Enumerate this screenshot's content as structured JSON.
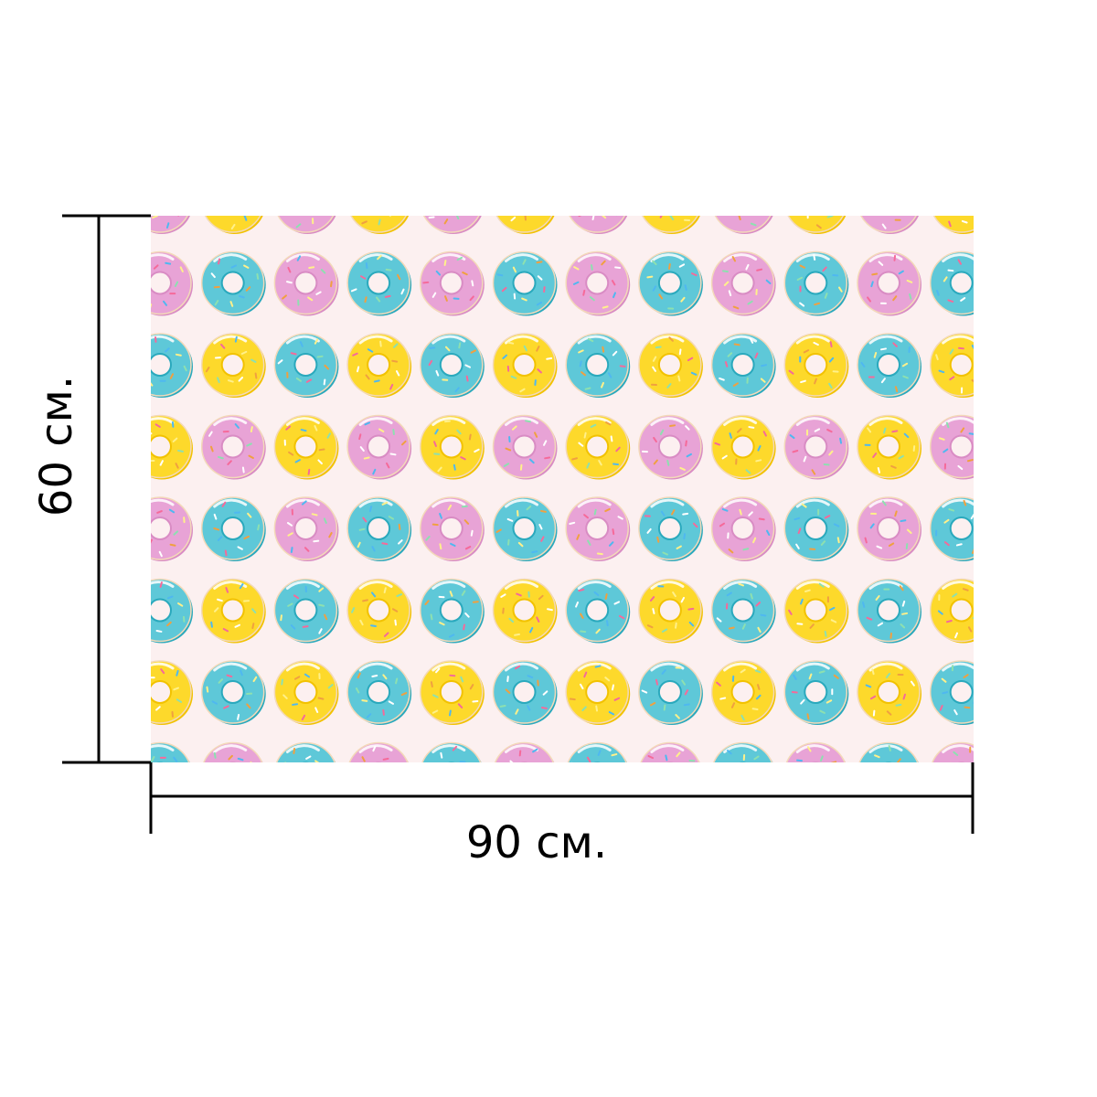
{
  "dimensions": {
    "width_label": "90 см.",
    "height_label": "60 см."
  },
  "pattern": {
    "background": "#fcf0f0",
    "colors": {
      "pink": "#e8a3d6",
      "blue": "#5ec8d8",
      "yellow": "#fdd92b"
    },
    "sprinkle_colors": [
      "#ffffff",
      "#f56a9a",
      "#4fb8f0",
      "#fff08a",
      "#8de0b0",
      "#f0a040"
    ],
    "rows": [
      [
        "pink",
        "yellow",
        "pink",
        "yellow",
        "pink",
        "yellow",
        "pink",
        "yellow",
        "pink",
        "yellow",
        "pink",
        "yellow"
      ],
      [
        "pink",
        "blue",
        "pink",
        "blue",
        "pink",
        "blue",
        "pink",
        "blue",
        "pink",
        "blue",
        "pink",
        "blue"
      ],
      [
        "blue",
        "yellow",
        "blue",
        "yellow",
        "blue",
        "yellow",
        "blue",
        "yellow",
        "blue",
        "yellow",
        "blue",
        "yellow"
      ],
      [
        "yellow",
        "pink",
        "yellow",
        "pink",
        "yellow",
        "pink",
        "yellow",
        "pink",
        "yellow",
        "pink",
        "yellow",
        "pink"
      ],
      [
        "pink",
        "blue",
        "pink",
        "blue",
        "pink",
        "blue",
        "pink",
        "blue",
        "pink",
        "blue",
        "pink",
        "blue"
      ],
      [
        "blue",
        "yellow",
        "blue",
        "yellow",
        "blue",
        "yellow",
        "blue",
        "yellow",
        "blue",
        "yellow",
        "blue",
        "yellow"
      ],
      [
        "yellow",
        "blue",
        "yellow",
        "blue",
        "yellow",
        "blue",
        "yellow",
        "blue",
        "yellow",
        "blue",
        "yellow",
        "blue"
      ],
      [
        "blue",
        "pink",
        "blue",
        "pink",
        "blue",
        "pink",
        "blue",
        "pink",
        "blue",
        "pink",
        "blue",
        "pink"
      ]
    ]
  }
}
